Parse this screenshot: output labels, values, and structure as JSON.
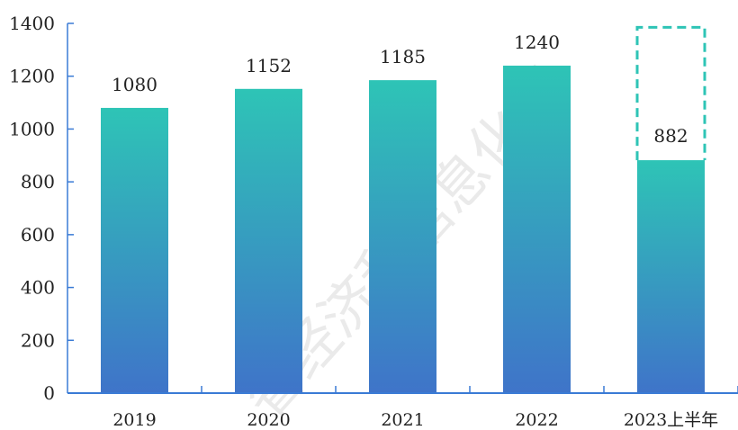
{
  "chart_data": {
    "type": "bar",
    "title": "",
    "xlabel": "",
    "ylabel": "",
    "categories": [
      "2019",
      "2020",
      "2021",
      "2022",
      "2023上半年"
    ],
    "values": [
      1080,
      1152,
      1185,
      1240,
      882
    ],
    "data_labels": [
      "1080",
      "1152",
      "1185",
      "1240",
      "882"
    ],
    "ylim": [
      0,
      1400
    ],
    "yticks": [
      0,
      200,
      400,
      600,
      800,
      1000,
      1200,
      1400
    ],
    "grid": false,
    "legend": "none",
    "projected_outline": {
      "category": "2023上半年",
      "top_value": 1385,
      "style": "dashed"
    },
    "colors": {
      "bar_top": "#2ec4b6",
      "bar_bottom": "#3f74c9",
      "axis": "#3a7bd5",
      "outline": "#2ec4b6"
    }
  },
  "watermark": "省经济和信息化厅"
}
